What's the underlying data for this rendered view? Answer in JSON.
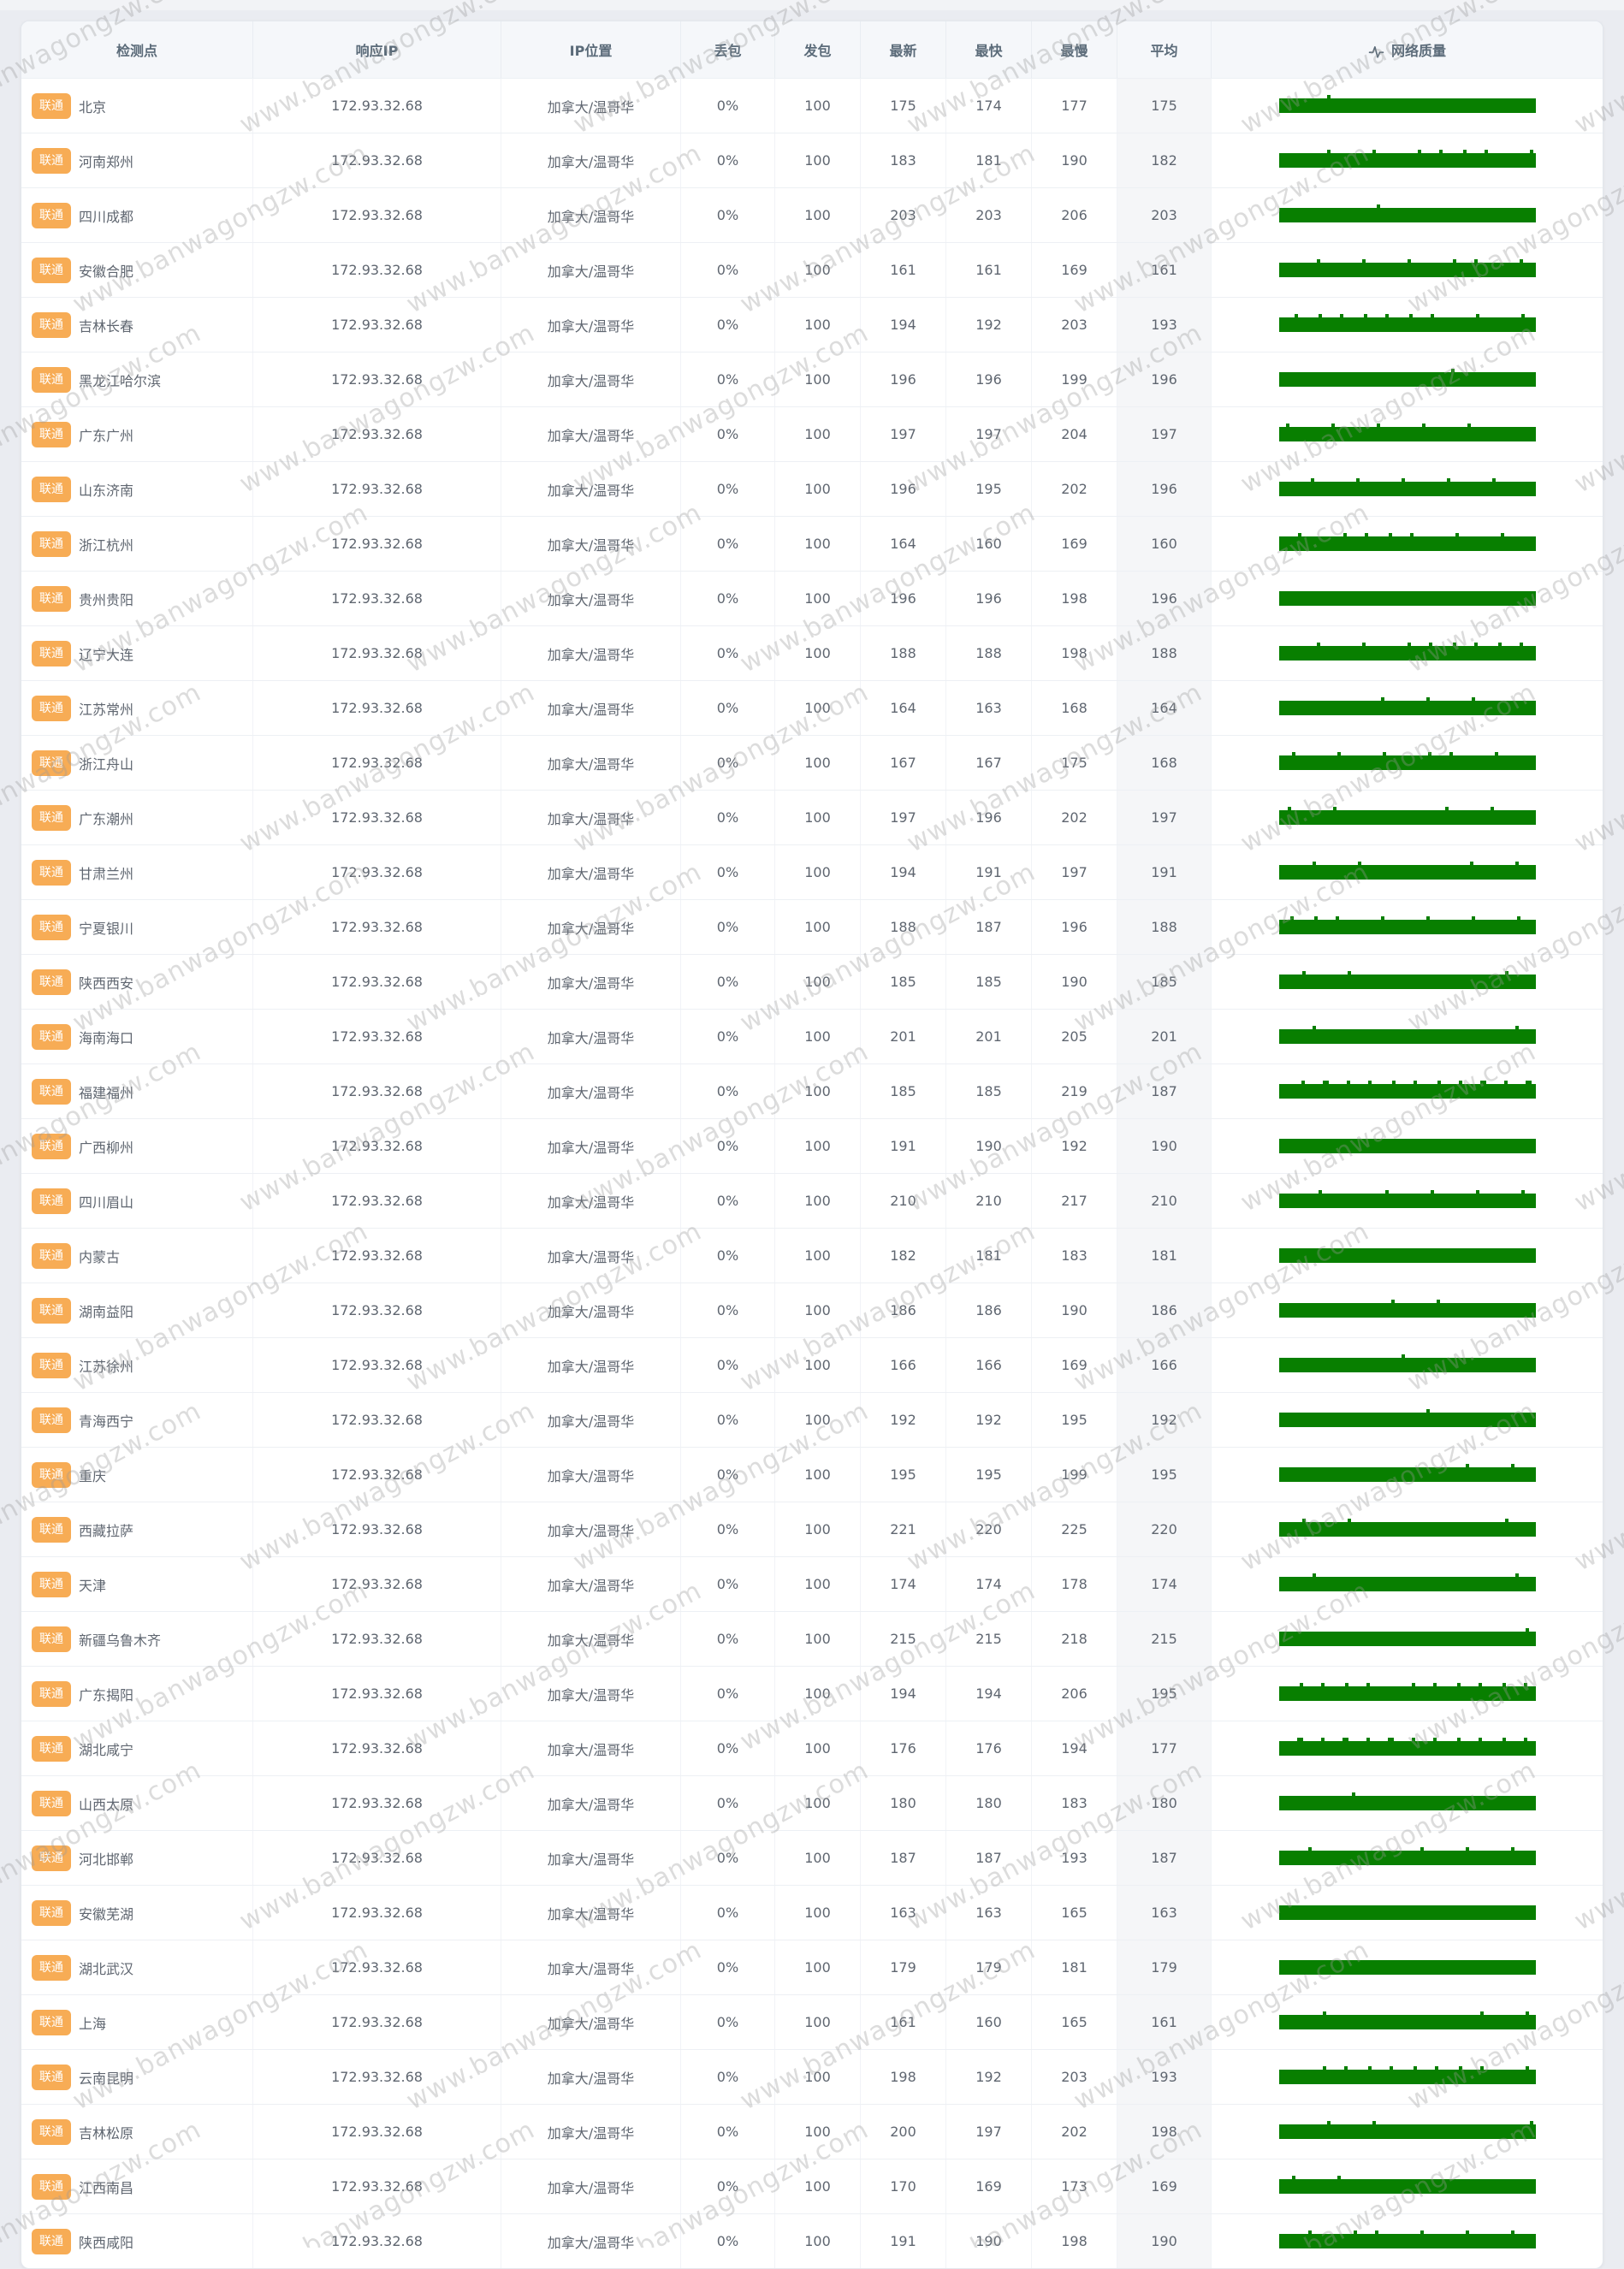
{
  "page": {
    "watermark": "www.banwagongzw.com"
  },
  "table": {
    "bar_color": "#087f00",
    "badge_color": "#f7ac55",
    "headers": {
      "node": "检测点",
      "ip": "响应IP",
      "ip_location": "IP位置",
      "loss": "丢包",
      "sent": "发包",
      "latest": "最新",
      "fastest": "最快",
      "slowest": "最慢",
      "average": "平均",
      "quality": "网络质量"
    },
    "rows": [
      {
        "isp": "联通",
        "node": "北京",
        "ip": "172.93.32.68",
        "location": "加拿大/温哥华",
        "loss": "0%",
        "sent": "100",
        "latest": 175,
        "fastest": 174,
        "slowest": 177,
        "average": 175
      },
      {
        "isp": "联通",
        "node": "河南郑州",
        "ip": "172.93.32.68",
        "location": "加拿大/温哥华",
        "loss": "0%",
        "sent": "100",
        "latest": 183,
        "fastest": 181,
        "slowest": 190,
        "average": 182
      },
      {
        "isp": "联通",
        "node": "四川成都",
        "ip": "172.93.32.68",
        "location": "加拿大/温哥华",
        "loss": "0%",
        "sent": "100",
        "latest": 203,
        "fastest": 203,
        "slowest": 206,
        "average": 203
      },
      {
        "isp": "联通",
        "node": "安徽合肥",
        "ip": "172.93.32.68",
        "location": "加拿大/温哥华",
        "loss": "0%",
        "sent": "100",
        "latest": 161,
        "fastest": 161,
        "slowest": 169,
        "average": 161
      },
      {
        "isp": "联通",
        "node": "吉林长春",
        "ip": "172.93.32.68",
        "location": "加拿大/温哥华",
        "loss": "0%",
        "sent": "100",
        "latest": 194,
        "fastest": 192,
        "slowest": 203,
        "average": 193
      },
      {
        "isp": "联通",
        "node": "黑龙江哈尔滨",
        "ip": "172.93.32.68",
        "location": "加拿大/温哥华",
        "loss": "0%",
        "sent": "100",
        "latest": 196,
        "fastest": 196,
        "slowest": 199,
        "average": 196
      },
      {
        "isp": "联通",
        "node": "广东广州",
        "ip": "172.93.32.68",
        "location": "加拿大/温哥华",
        "loss": "0%",
        "sent": "100",
        "latest": 197,
        "fastest": 197,
        "slowest": 204,
        "average": 197
      },
      {
        "isp": "联通",
        "node": "山东济南",
        "ip": "172.93.32.68",
        "location": "加拿大/温哥华",
        "loss": "0%",
        "sent": "100",
        "latest": 196,
        "fastest": 195,
        "slowest": 202,
        "average": 196
      },
      {
        "isp": "联通",
        "node": "浙江杭州",
        "ip": "172.93.32.68",
        "location": "加拿大/温哥华",
        "loss": "0%",
        "sent": "100",
        "latest": 164,
        "fastest": 160,
        "slowest": 169,
        "average": 160
      },
      {
        "isp": "联通",
        "node": "贵州贵阳",
        "ip": "172.93.32.68",
        "location": "加拿大/温哥华",
        "loss": "0%",
        "sent": "100",
        "latest": 196,
        "fastest": 196,
        "slowest": 198,
        "average": 196
      },
      {
        "isp": "联通",
        "node": "辽宁大连",
        "ip": "172.93.32.68",
        "location": "加拿大/温哥华",
        "loss": "0%",
        "sent": "100",
        "latest": 188,
        "fastest": 188,
        "slowest": 198,
        "average": 188
      },
      {
        "isp": "联通",
        "node": "江苏常州",
        "ip": "172.93.32.68",
        "location": "加拿大/温哥华",
        "loss": "0%",
        "sent": "100",
        "latest": 164,
        "fastest": 163,
        "slowest": 168,
        "average": 164
      },
      {
        "isp": "联通",
        "node": "浙江舟山",
        "ip": "172.93.32.68",
        "location": "加拿大/温哥华",
        "loss": "0%",
        "sent": "100",
        "latest": 167,
        "fastest": 167,
        "slowest": 175,
        "average": 168
      },
      {
        "isp": "联通",
        "node": "广东潮州",
        "ip": "172.93.32.68",
        "location": "加拿大/温哥华",
        "loss": "0%",
        "sent": "100",
        "latest": 197,
        "fastest": 196,
        "slowest": 202,
        "average": 197
      },
      {
        "isp": "联通",
        "node": "甘肃兰州",
        "ip": "172.93.32.68",
        "location": "加拿大/温哥华",
        "loss": "0%",
        "sent": "100",
        "latest": 194,
        "fastest": 191,
        "slowest": 197,
        "average": 191
      },
      {
        "isp": "联通",
        "node": "宁夏银川",
        "ip": "172.93.32.68",
        "location": "加拿大/温哥华",
        "loss": "0%",
        "sent": "100",
        "latest": 188,
        "fastest": 187,
        "slowest": 196,
        "average": 188
      },
      {
        "isp": "联通",
        "node": "陕西西安",
        "ip": "172.93.32.68",
        "location": "加拿大/温哥华",
        "loss": "0%",
        "sent": "100",
        "latest": 185,
        "fastest": 185,
        "slowest": 190,
        "average": 185
      },
      {
        "isp": "联通",
        "node": "海南海口",
        "ip": "172.93.32.68",
        "location": "加拿大/温哥华",
        "loss": "0%",
        "sent": "100",
        "latest": 201,
        "fastest": 201,
        "slowest": 205,
        "average": 201
      },
      {
        "isp": "联通",
        "node": "福建福州",
        "ip": "172.93.32.68",
        "location": "加拿大/温哥华",
        "loss": "0%",
        "sent": "100",
        "latest": 185,
        "fastest": 185,
        "slowest": 219,
        "average": 187
      },
      {
        "isp": "联通",
        "node": "广西柳州",
        "ip": "172.93.32.68",
        "location": "加拿大/温哥华",
        "loss": "0%",
        "sent": "100",
        "latest": 191,
        "fastest": 190,
        "slowest": 192,
        "average": 190
      },
      {
        "isp": "联通",
        "node": "四川眉山",
        "ip": "172.93.32.68",
        "location": "加拿大/温哥华",
        "loss": "0%",
        "sent": "100",
        "latest": 210,
        "fastest": 210,
        "slowest": 217,
        "average": 210
      },
      {
        "isp": "联通",
        "node": "内蒙古",
        "ip": "172.93.32.68",
        "location": "加拿大/温哥华",
        "loss": "0%",
        "sent": "100",
        "latest": 182,
        "fastest": 181,
        "slowest": 183,
        "average": 181
      },
      {
        "isp": "联通",
        "node": "湖南益阳",
        "ip": "172.93.32.68",
        "location": "加拿大/温哥华",
        "loss": "0%",
        "sent": "100",
        "latest": 186,
        "fastest": 186,
        "slowest": 190,
        "average": 186
      },
      {
        "isp": "联通",
        "node": "江苏徐州",
        "ip": "172.93.32.68",
        "location": "加拿大/温哥华",
        "loss": "0%",
        "sent": "100",
        "latest": 166,
        "fastest": 166,
        "slowest": 169,
        "average": 166
      },
      {
        "isp": "联通",
        "node": "青海西宁",
        "ip": "172.93.32.68",
        "location": "加拿大/温哥华",
        "loss": "0%",
        "sent": "100",
        "latest": 192,
        "fastest": 192,
        "slowest": 195,
        "average": 192
      },
      {
        "isp": "联通",
        "node": "重庆",
        "ip": "172.93.32.68",
        "location": "加拿大/温哥华",
        "loss": "0%",
        "sent": "100",
        "latest": 195,
        "fastest": 195,
        "slowest": 199,
        "average": 195
      },
      {
        "isp": "联通",
        "node": "西藏拉萨",
        "ip": "172.93.32.68",
        "location": "加拿大/温哥华",
        "loss": "0%",
        "sent": "100",
        "latest": 221,
        "fastest": 220,
        "slowest": 225,
        "average": 220
      },
      {
        "isp": "联通",
        "node": "天津",
        "ip": "172.93.32.68",
        "location": "加拿大/温哥华",
        "loss": "0%",
        "sent": "100",
        "latest": 174,
        "fastest": 174,
        "slowest": 178,
        "average": 174
      },
      {
        "isp": "联通",
        "node": "新疆乌鲁木齐",
        "ip": "172.93.32.68",
        "location": "加拿大/温哥华",
        "loss": "0%",
        "sent": "100",
        "latest": 215,
        "fastest": 215,
        "slowest": 218,
        "average": 215
      },
      {
        "isp": "联通",
        "node": "广东揭阳",
        "ip": "172.93.32.68",
        "location": "加拿大/温哥华",
        "loss": "0%",
        "sent": "100",
        "latest": 194,
        "fastest": 194,
        "slowest": 206,
        "average": 195
      },
      {
        "isp": "联通",
        "node": "湖北咸宁",
        "ip": "172.93.32.68",
        "location": "加拿大/温哥华",
        "loss": "0%",
        "sent": "100",
        "latest": 176,
        "fastest": 176,
        "slowest": 194,
        "average": 177
      },
      {
        "isp": "联通",
        "node": "山西太原",
        "ip": "172.93.32.68",
        "location": "加拿大/温哥华",
        "loss": "0%",
        "sent": "100",
        "latest": 180,
        "fastest": 180,
        "slowest": 183,
        "average": 180
      },
      {
        "isp": "联通",
        "node": "河北邯郸",
        "ip": "172.93.32.68",
        "location": "加拿大/温哥华",
        "loss": "0%",
        "sent": "100",
        "latest": 187,
        "fastest": 187,
        "slowest": 193,
        "average": 187
      },
      {
        "isp": "联通",
        "node": "安徽芜湖",
        "ip": "172.93.32.68",
        "location": "加拿大/温哥华",
        "loss": "0%",
        "sent": "100",
        "latest": 163,
        "fastest": 163,
        "slowest": 165,
        "average": 163
      },
      {
        "isp": "联通",
        "node": "湖北武汉",
        "ip": "172.93.32.68",
        "location": "加拿大/温哥华",
        "loss": "0%",
        "sent": "100",
        "latest": 179,
        "fastest": 179,
        "slowest": 181,
        "average": 179
      },
      {
        "isp": "联通",
        "node": "上海",
        "ip": "172.93.32.68",
        "location": "加拿大/温哥华",
        "loss": "0%",
        "sent": "100",
        "latest": 161,
        "fastest": 160,
        "slowest": 165,
        "average": 161
      },
      {
        "isp": "联通",
        "node": "云南昆明",
        "ip": "172.93.32.68",
        "location": "加拿大/温哥华",
        "loss": "0%",
        "sent": "100",
        "latest": 198,
        "fastest": 192,
        "slowest": 203,
        "average": 193
      },
      {
        "isp": "联通",
        "node": "吉林松原",
        "ip": "172.93.32.68",
        "location": "加拿大/温哥华",
        "loss": "0%",
        "sent": "100",
        "latest": 200,
        "fastest": 197,
        "slowest": 202,
        "average": 198
      },
      {
        "isp": "联通",
        "node": "江西南昌",
        "ip": "172.93.32.68",
        "location": "加拿大/温哥华",
        "loss": "0%",
        "sent": "100",
        "latest": 170,
        "fastest": 169,
        "slowest": 173,
        "average": 169
      },
      {
        "isp": "联通",
        "node": "陕西咸阳",
        "ip": "172.93.32.68",
        "location": "加拿大/温哥华",
        "loss": "0%",
        "sent": "100",
        "latest": 191,
        "fastest": 190,
        "slowest": 198,
        "average": 190
      }
    ]
  }
}
